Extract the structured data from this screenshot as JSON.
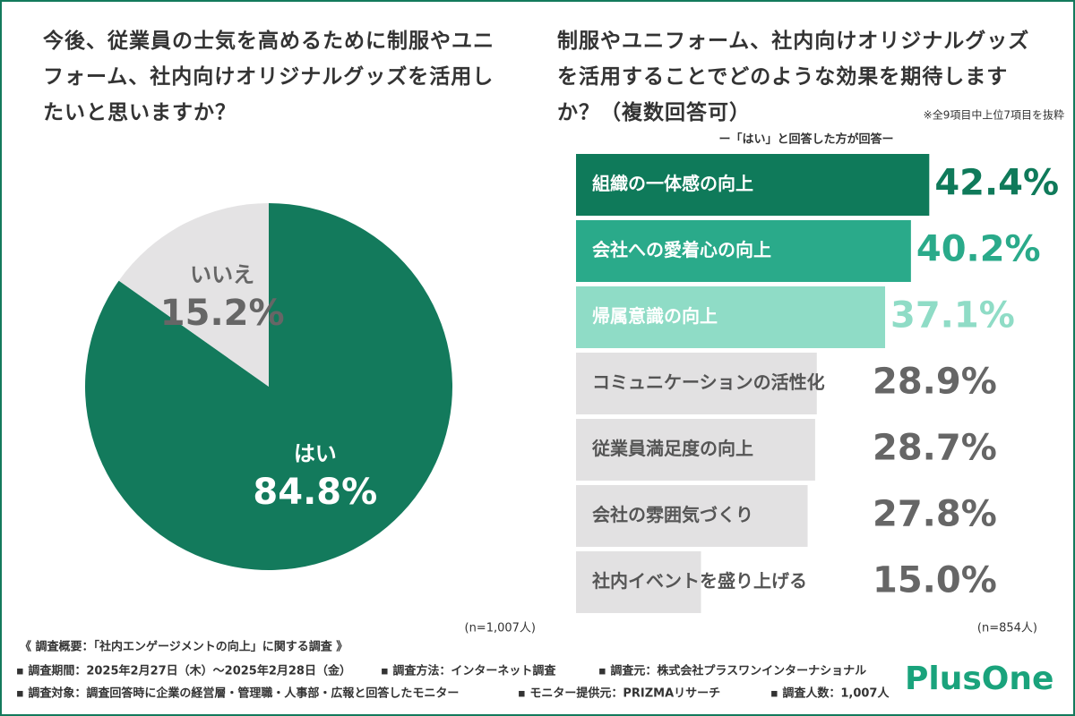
{
  "chart_data": [
    {
      "type": "pie",
      "title": "今後、従業員の士気を高めるために制服やユニフォーム、社内向けオリジナルグッズを活用したいと思いますか？",
      "note": "(n=1,007人)",
      "categories": [
        "はい",
        "いいえ"
      ],
      "values": [
        84.8,
        15.2
      ],
      "value_labels": [
        "84.8%",
        "15.2%"
      ],
      "colors": [
        "#137a5c",
        "#e4e3e4"
      ],
      "label_colors": [
        "#ffffff",
        "#666666"
      ]
    },
    {
      "type": "bar",
      "title": "制服やユニフォーム、社内向けオリジナルグッズを活用することでどのような効果を期待しますか？（複数回答可）",
      "title_note": "※全9項目中上位7項目を抜粋",
      "subtitle": "ー「はい」と回答した方が回答ー",
      "note": "(n=854人)",
      "categories": [
        "組織の一体感の向上",
        "会社への愛着心の向上",
        "帰属意識の向上",
        "コミュニケーションの活性化",
        "従業員満足度の向上",
        "会社の雰囲気づくり",
        "社内イベントを盛り上げる"
      ],
      "values": [
        42.4,
        40.2,
        37.1,
        28.9,
        28.7,
        27.8,
        15.0
      ],
      "value_labels": [
        "42.4%",
        "40.2%",
        "37.1%",
        "28.9%",
        "28.7%",
        "27.8%",
        "15.0%"
      ],
      "colors": [
        "#0f7a5a",
        "#2aaa8a",
        "#8fdcc6",
        "#e2e1e2",
        "#e2e1e2",
        "#e2e1e2",
        "#e2e1e2"
      ],
      "category_label_colors": [
        "#ffffff",
        "#ffffff",
        "#ffffff",
        "#555555",
        "#555555",
        "#555555",
        "#555555"
      ],
      "value_label_colors": [
        "#0f7a5a",
        "#2aaa8a",
        "#8fdcc6",
        "#666666",
        "#666666",
        "#666666",
        "#666666"
      ],
      "xlim": [
        0,
        50
      ]
    }
  ],
  "footer": {
    "heading": "《 調査概要：「社内エンゲージメントの向上」に関する調査 》",
    "rows": [
      [
        "▪ 調査期間：2025年2月27日（木）〜2025年2月28日（金）",
        "▪ 調査方法：インターネット調査",
        "▪ 調査元：株式会社プラスワンインターナショナル"
      ],
      [
        "▪ 調査対象：調査回答時に企業の経営層・管理職・人事部・広報と回答したモニター",
        "▪ モニター提供元：PRIZMAリサーチ",
        "▪ 調査人数：1,007人"
      ]
    ],
    "logo": "PlusOne"
  }
}
